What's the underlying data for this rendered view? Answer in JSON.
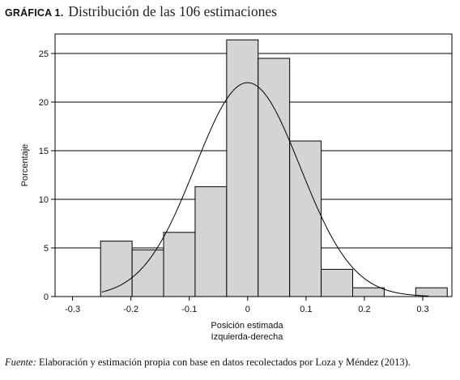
{
  "header": {
    "figure_label": "GRÁFICA 1.",
    "figure_title": "Distribución de las 106 estimaciones"
  },
  "footer": {
    "source_label": "Fuente:",
    "source_text": "Elaboración y estimación propia con base en datos recolectados por Loza y Méndez (2013)."
  },
  "chart_data": {
    "type": "bar",
    "xlabel": [
      "Posición estimada",
      "Izquierda-derecha"
    ],
    "ylabel": "Porcentaje",
    "xlim": [
      -0.33,
      0.35
    ],
    "ylim": [
      0,
      27
    ],
    "xticks": [
      -0.3,
      -0.2,
      -0.1,
      0,
      0.1,
      0.2,
      0.3
    ],
    "xtick_labels": [
      "-0.3",
      "-0.2",
      "-0.1",
      "0",
      "0.1",
      "0.2",
      "0.3"
    ],
    "yticks": [
      0,
      5,
      10,
      15,
      20,
      25
    ],
    "ytick_labels": [
      "0",
      "5",
      "10",
      "15",
      "20",
      "25"
    ],
    "grid": "horizontal",
    "bar_color": "#d4d4d4",
    "bin_width": 0.054,
    "bins": [
      {
        "start": -0.252,
        "value": 5.7
      },
      {
        "start": -0.198,
        "value": 4.8
      },
      {
        "start": -0.144,
        "value": 6.6
      },
      {
        "start": -0.09,
        "value": 11.3
      },
      {
        "start": -0.036,
        "value": 26.4
      },
      {
        "start": 0.018,
        "value": 24.5
      },
      {
        "start": 0.072,
        "value": 16.0
      },
      {
        "start": 0.126,
        "value": 2.8
      },
      {
        "start": 0.18,
        "value": 0.9
      },
      {
        "start": 0.234,
        "value": 0.0
      },
      {
        "start": 0.288,
        "value": 0.9
      }
    ],
    "normal_curve": {
      "mean": 0.0,
      "sd": 0.09,
      "peak": 22.0,
      "range": [
        -0.25,
        0.31
      ]
    }
  }
}
